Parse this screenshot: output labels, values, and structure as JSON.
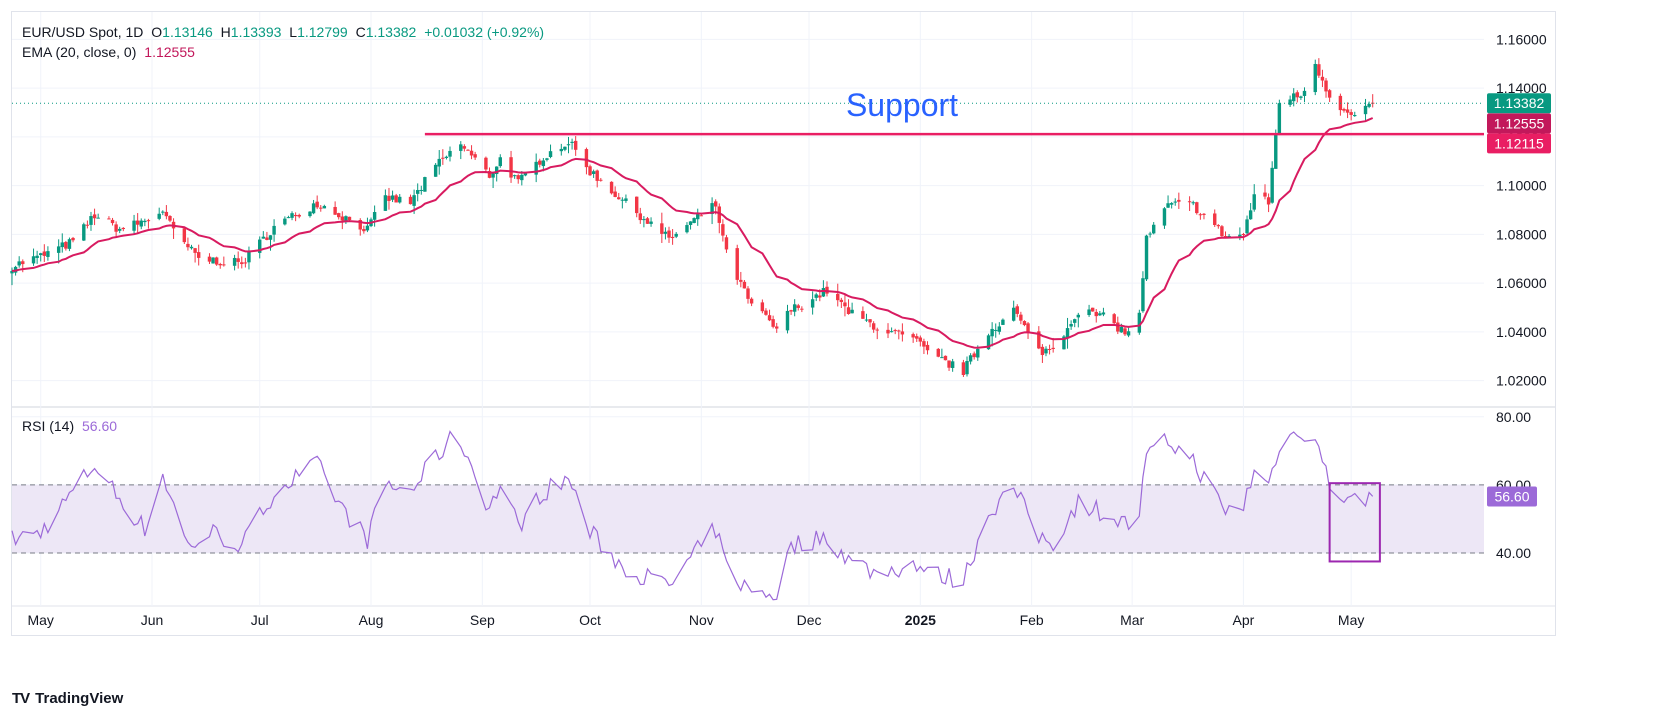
{
  "header": {
    "symbol": "EUR/USD Spot, 1D",
    "open_label": "O",
    "open": "1.13146",
    "high_label": "H",
    "high": "1.13393",
    "low_label": "L",
    "low": "1.12799",
    "close_label": "C",
    "close": "1.13382",
    "change": "+0.01032 (+0.92%)",
    "ema_label": "EMA (20, close, 0)",
    "ema_value": "1.12555",
    "rsi_label": "RSI (14)",
    "rsi_value": "56.60"
  },
  "annotation": {
    "support_text": "Support",
    "support_level": 1.12115,
    "support_start": "2024-08-16"
  },
  "price_badges": [
    {
      "text": "1.13382",
      "value": 1.13382,
      "color": "#089981"
    },
    {
      "text": "1.12555",
      "value": 1.12555,
      "color": "#c2185b"
    },
    {
      "text": "1.12115",
      "value": 1.12115,
      "color": "#e91e63"
    }
  ],
  "rsi_badge": {
    "text": "56.60",
    "value": 56.6,
    "color": "#9c6ad8"
  },
  "branding": {
    "logo_mark": "TV",
    "name": "TradingView"
  },
  "colors": {
    "up": "#089981",
    "down": "#f23645",
    "ema": "#d81b60",
    "support": "#e91e63",
    "rsi": "#9c6ad8",
    "rsi_band": "#ede7f6",
    "annotation_text": "#2962ff"
  },
  "chart_data": {
    "type": "candlestick",
    "title": "EUR/USD Spot, 1D",
    "price_axis": {
      "ticks": [
        1.02,
        1.04,
        1.06,
        1.08,
        1.1,
        1.12,
        1.14,
        1.16
      ],
      "tick_labels": [
        "1.02000",
        "1.04000",
        "1.06000",
        "1.08000",
        "1.10000",
        "1.12000",
        "1.14000",
        "1.16000"
      ],
      "range": [
        1.01,
        1.17
      ]
    },
    "rsi_axis": {
      "ticks": [
        40,
        60,
        80
      ],
      "tick_labels": [
        "40.00",
        "60.00",
        "80.00"
      ],
      "range": [
        25,
        82
      ],
      "band": [
        40,
        60
      ]
    },
    "time_axis": {
      "labels": [
        "May",
        "Jun",
        "Jul",
        "Aug",
        "Sep",
        "Oct",
        "Nov",
        "Dec",
        "2025",
        "Feb",
        "Mar",
        "Apr",
        "May"
      ],
      "label_dates": [
        "2024-05-01",
        "2024-06-01",
        "2024-07-01",
        "2024-08-01",
        "2024-09-01",
        "2024-10-01",
        "2024-11-01",
        "2024-12-01",
        "2025-01-01",
        "2025-02-01",
        "2025-03-01",
        "2025-04-01",
        "2025-05-01"
      ],
      "range": [
        "2024-04-23",
        "2025-06-07"
      ]
    },
    "price_anchors": [
      [
        "2024-04-23",
        1.067
      ],
      [
        "2024-05-01",
        1.071
      ],
      [
        "2024-05-10",
        1.077
      ],
      [
        "2024-05-16",
        1.088
      ],
      [
        "2024-05-23",
        1.082
      ],
      [
        "2024-05-31",
        1.086
      ],
      [
        "2024-06-04",
        1.09
      ],
      [
        "2024-06-07",
        1.081
      ],
      [
        "2024-06-14",
        1.07
      ],
      [
        "2024-06-26",
        1.068
      ],
      [
        "2024-07-05",
        1.083
      ],
      [
        "2024-07-17",
        1.093
      ],
      [
        "2024-07-22",
        1.089
      ],
      [
        "2024-07-31",
        1.082
      ],
      [
        "2024-08-05",
        1.095
      ],
      [
        "2024-08-12",
        1.093
      ],
      [
        "2024-08-19",
        1.108
      ],
      [
        "2024-08-26",
        1.117
      ],
      [
        "2024-09-03",
        1.104
      ],
      [
        "2024-09-06",
        1.111
      ],
      [
        "2024-09-11",
        1.101
      ],
      [
        "2024-09-18",
        1.112
      ],
      [
        "2024-09-25",
        1.118
      ],
      [
        "2024-10-01",
        1.106
      ],
      [
        "2024-10-10",
        1.094
      ],
      [
        "2024-10-23",
        1.078
      ],
      [
        "2024-11-01",
        1.088
      ],
      [
        "2024-11-05",
        1.092
      ],
      [
        "2024-11-08",
        1.072
      ],
      [
        "2024-11-14",
        1.053
      ],
      [
        "2024-11-22",
        1.041
      ],
      [
        "2024-11-26",
        1.049
      ],
      [
        "2024-12-06",
        1.057
      ],
      [
        "2024-12-12",
        1.048
      ],
      [
        "2024-12-20",
        1.042
      ],
      [
        "2024-12-31",
        1.036
      ],
      [
        "2025-01-03",
        1.031
      ],
      [
        "2025-01-13",
        1.024
      ],
      [
        "2025-01-20",
        1.04
      ],
      [
        "2025-01-27",
        1.049
      ],
      [
        "2025-02-03",
        1.032
      ],
      [
        "2025-02-07",
        1.033
      ],
      [
        "2025-02-14",
        1.049
      ],
      [
        "2025-02-21",
        1.046
      ],
      [
        "2025-02-28",
        1.039
      ],
      [
        "2025-03-03",
        1.048
      ],
      [
        "2025-03-05",
        1.078
      ],
      [
        "2025-03-11",
        1.092
      ],
      [
        "2025-03-18",
        1.092
      ],
      [
        "2025-03-27",
        1.079
      ],
      [
        "2025-04-01",
        1.08
      ],
      [
        "2025-04-04",
        1.096
      ],
      [
        "2025-04-08",
        1.093
      ],
      [
        "2025-04-11",
        1.135
      ],
      [
        "2025-04-17",
        1.137
      ],
      [
        "2025-04-21",
        1.15
      ],
      [
        "2025-04-25",
        1.137
      ],
      [
        "2025-05-01",
        1.128
      ],
      [
        "2025-05-07",
        1.134
      ]
    ],
    "rsi_anchors": [
      [
        "2024-04-23",
        44
      ],
      [
        "2024-05-01",
        46
      ],
      [
        "2024-05-16",
        66
      ],
      [
        "2024-05-23",
        56
      ],
      [
        "2024-05-30",
        47
      ],
      [
        "2024-06-04",
        63
      ],
      [
        "2024-06-11",
        42
      ],
      [
        "2024-06-18",
        46
      ],
      [
        "2024-06-26",
        42
      ],
      [
        "2024-07-05",
        58
      ],
      [
        "2024-07-17",
        66
      ],
      [
        "2024-07-24",
        53
      ],
      [
        "2024-07-31",
        44
      ],
      [
        "2024-08-05",
        60
      ],
      [
        "2024-08-12",
        58
      ],
      [
        "2024-08-19",
        68
      ],
      [
        "2024-08-23",
        73
      ],
      [
        "2024-08-26",
        73
      ],
      [
        "2024-09-03",
        53
      ],
      [
        "2024-09-06",
        60
      ],
      [
        "2024-09-11",
        48
      ],
      [
        "2024-09-18",
        58
      ],
      [
        "2024-09-25",
        62
      ],
      [
        "2024-10-01",
        46
      ],
      [
        "2024-10-10",
        36
      ],
      [
        "2024-10-23",
        30
      ],
      [
        "2024-11-01",
        42
      ],
      [
        "2024-11-05",
        47
      ],
      [
        "2024-11-08",
        36
      ],
      [
        "2024-11-14",
        29
      ],
      [
        "2024-11-22",
        28
      ],
      [
        "2024-11-26",
        42
      ],
      [
        "2024-12-06",
        45
      ],
      [
        "2024-12-12",
        38
      ],
      [
        "2024-12-20",
        34
      ],
      [
        "2024-12-31",
        37
      ],
      [
        "2025-01-03",
        34
      ],
      [
        "2025-01-13",
        32
      ],
      [
        "2025-01-20",
        52
      ],
      [
        "2025-01-27",
        59
      ],
      [
        "2025-02-03",
        45
      ],
      [
        "2025-02-07",
        43
      ],
      [
        "2025-02-14",
        55
      ],
      [
        "2025-02-21",
        52
      ],
      [
        "2025-02-28",
        48
      ],
      [
        "2025-03-03",
        52
      ],
      [
        "2025-03-05",
        68
      ],
      [
        "2025-03-11",
        73
      ],
      [
        "2025-03-18",
        67
      ],
      [
        "2025-03-27",
        52
      ],
      [
        "2025-04-01",
        54
      ],
      [
        "2025-04-04",
        64
      ],
      [
        "2025-04-08",
        60
      ],
      [
        "2025-04-11",
        72
      ],
      [
        "2025-04-17",
        76
      ],
      [
        "2025-04-21",
        74
      ],
      [
        "2025-04-25",
        60
      ],
      [
        "2025-05-01",
        55
      ],
      [
        "2025-05-07",
        56.6
      ]
    ],
    "highlight_box": {
      "date_start": "2025-04-25",
      "date_end": "2025-05-09",
      "rsi_top": 60.5,
      "rsi_bottom": 37.5,
      "color": "#9c27b0"
    }
  }
}
